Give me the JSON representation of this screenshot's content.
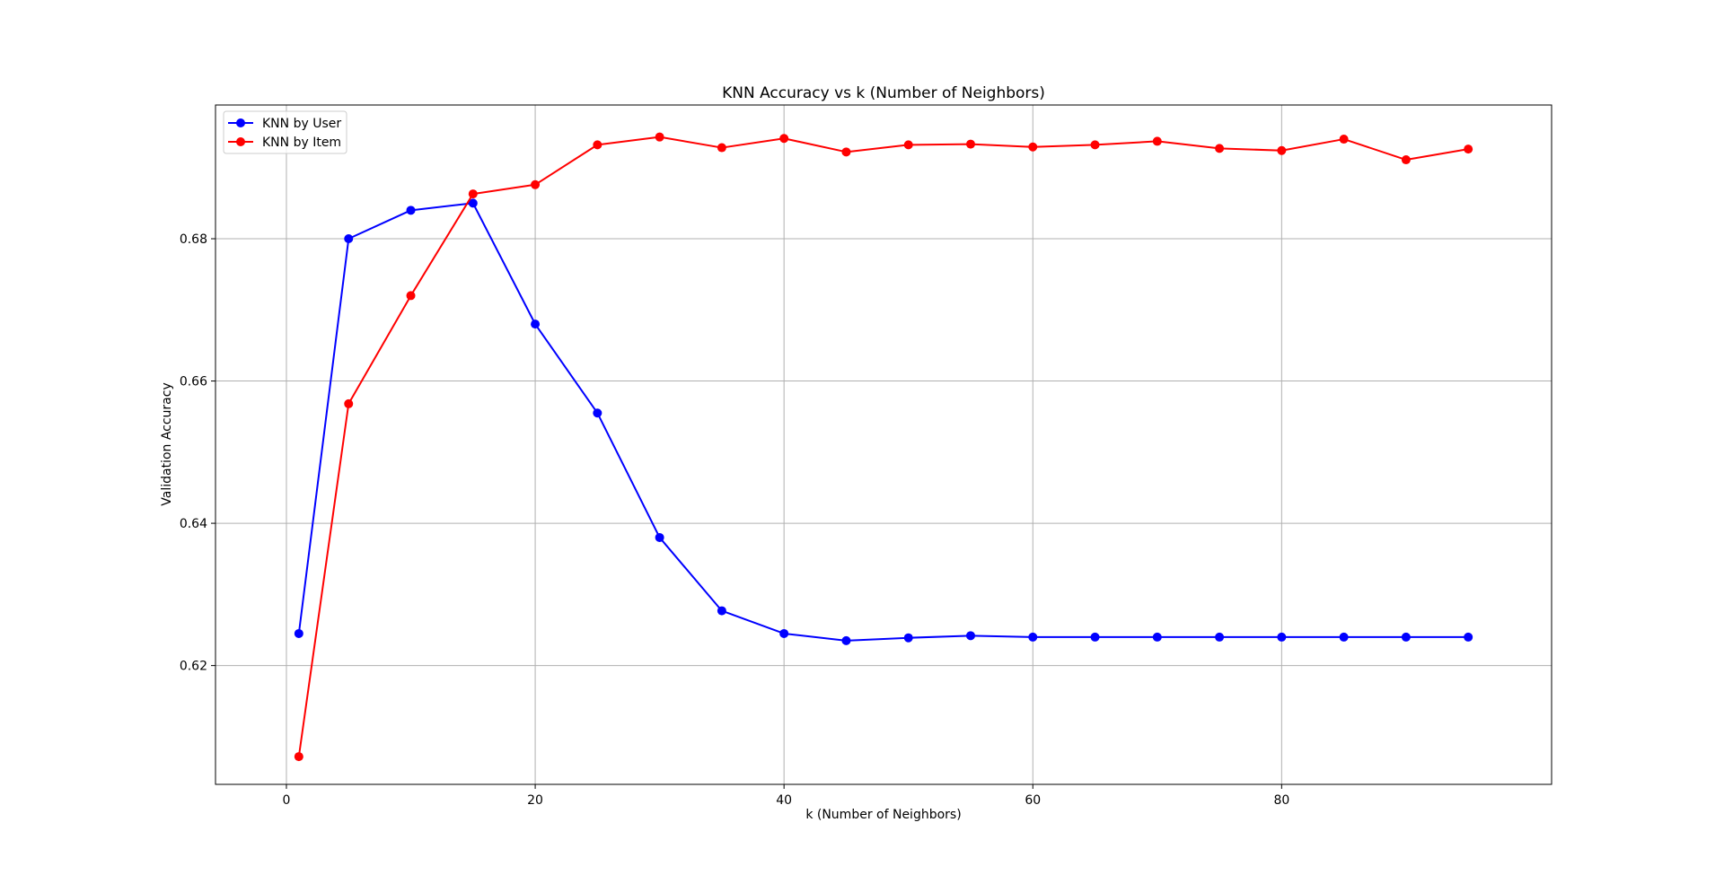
{
  "chart_data": {
    "type": "line",
    "title": "KNN Accuracy vs k (Number of Neighbors)",
    "xlabel": "k (Number of Neighbors)",
    "ylabel": "Validation Accuracy",
    "xlim": [
      -5.7,
      101.7
    ],
    "ylim": [
      0.6033,
      0.6988
    ],
    "xticks": [
      0,
      20,
      40,
      60,
      80
    ],
    "xtick_labels": [
      "0",
      "20",
      "40",
      "60",
      "80"
    ],
    "yticks": [
      0.62,
      0.64,
      0.66,
      0.68
    ],
    "ytick_labels": [
      "0.62",
      "0.64",
      "0.66",
      "0.68"
    ],
    "grid": true,
    "legend_position": "upper-left",
    "x": [
      1,
      5,
      10,
      15,
      20,
      25,
      30,
      35,
      40,
      45,
      50,
      55,
      60,
      65,
      70,
      75,
      80,
      85,
      90,
      95
    ],
    "series": [
      {
        "name": "KNN by User",
        "color": "#0000ff",
        "marker": "circle",
        "values": [
          0.6245,
          0.68,
          0.684,
          0.685,
          0.668,
          0.6555,
          0.638,
          0.6277,
          0.6245,
          0.6235,
          0.6239,
          0.6242,
          0.624,
          0.624,
          0.624,
          0.624,
          0.624,
          0.624,
          0.624,
          0.624
        ]
      },
      {
        "name": "KNN by Item",
        "color": "#ff0000",
        "marker": "circle",
        "values": [
          0.6072,
          0.6568,
          0.672,
          0.6863,
          0.6876,
          0.6932,
          0.6943,
          0.6928,
          0.6941,
          0.6922,
          0.6932,
          0.6933,
          0.6929,
          0.6932,
          0.6937,
          0.6927,
          0.6924,
          0.694,
          0.6911,
          0.6926
        ]
      }
    ]
  }
}
